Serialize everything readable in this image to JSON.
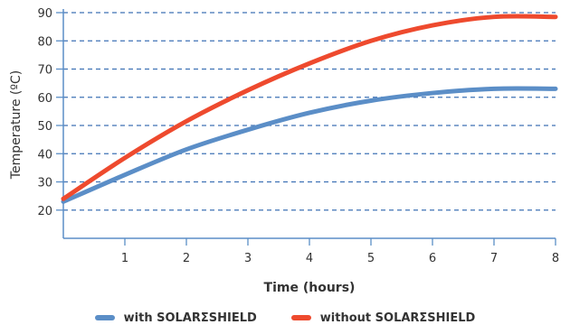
{
  "chart_data": {
    "type": "line",
    "title": "",
    "xlabel": "Time (hours)",
    "ylabel": "Temperature (ºC)",
    "xlim": [
      0,
      8
    ],
    "ylim": [
      10,
      90
    ],
    "x_ticks": [
      1,
      2,
      3,
      4,
      5,
      6,
      7,
      8
    ],
    "y_ticks": [
      20,
      30,
      40,
      50,
      60,
      70,
      80,
      90
    ],
    "grid": "horizontal dashed",
    "legend_position": "bottom",
    "series": [
      {
        "name": "with SOLARΣSHIELD",
        "color": "#5b8ec7",
        "x": [
          0,
          1,
          2,
          3,
          4,
          5,
          6,
          7,
          8
        ],
        "y": [
          23,
          32.5,
          41.5,
          48.5,
          54.5,
          58.8,
          61.5,
          63,
          63
        ]
      },
      {
        "name": "without SOLARΣSHIELD",
        "color": "#ee4a2e",
        "x": [
          0,
          1,
          2,
          3,
          4,
          5,
          6,
          7,
          8
        ],
        "y": [
          24,
          38.5,
          51.5,
          62.5,
          72,
          80,
          85.5,
          88.5,
          88.5
        ]
      }
    ]
  }
}
